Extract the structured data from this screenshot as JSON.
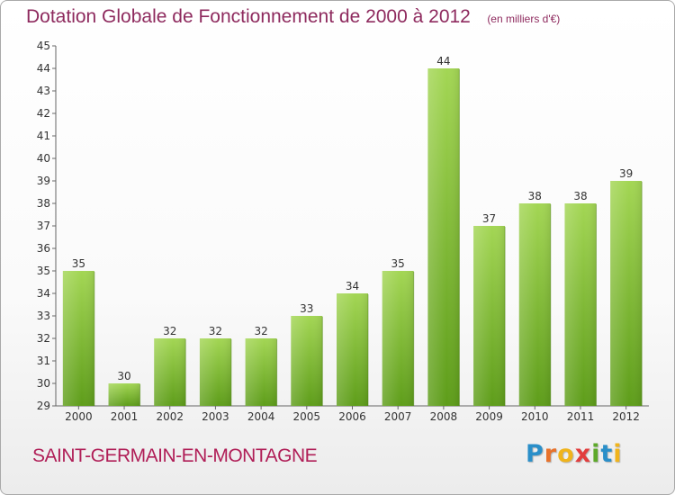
{
  "title": "Dotation Globale de Fonctionnement de 2000 à 2012",
  "subtitle": "(en milliers d'€)",
  "commune": "SAINT-GERMAIN-EN-MONTAGNE",
  "logo": {
    "letters": [
      "P",
      "r",
      "o",
      "x",
      "i",
      "t",
      "i"
    ],
    "colors": [
      "#2a8fc9",
      "#e8722b",
      "#f0b41c",
      "#e23d3d",
      "#5da92a",
      "#2a8fc9",
      "#f0b41c"
    ]
  },
  "colors": {
    "bar_light": "#a3d654",
    "bar_dark": "#5e9d1a",
    "title": "#8e2a5e",
    "commune": "#b01e57"
  },
  "chart_data": {
    "type": "bar",
    "categories": [
      "2000",
      "2001",
      "2002",
      "2003",
      "2004",
      "2005",
      "2006",
      "2007",
      "2008",
      "2009",
      "2010",
      "2011",
      "2012"
    ],
    "values": [
      35,
      30,
      32,
      32,
      32,
      33,
      34,
      35,
      44,
      37,
      38,
      38,
      39
    ],
    "ylim": [
      29,
      45
    ],
    "yticks": [
      29,
      30,
      31,
      32,
      33,
      34,
      35,
      36,
      37,
      38,
      39,
      40,
      41,
      42,
      43,
      44,
      45
    ],
    "grid": false,
    "data_labels": true
  }
}
